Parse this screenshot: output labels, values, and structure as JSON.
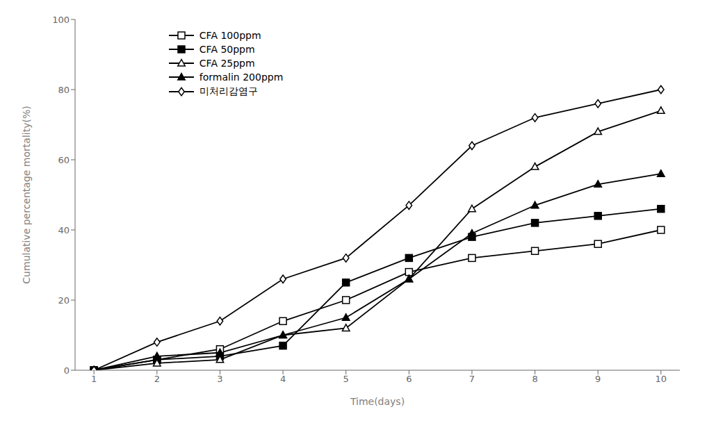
{
  "chart_data": {
    "type": "line",
    "x": [
      1,
      2,
      3,
      4,
      5,
      6,
      7,
      8,
      9,
      10
    ],
    "xlabel": "Time(days)",
    "ylabel": "Cumulative percentage mortality(%)",
    "xlim": [
      0.7,
      10.3
    ],
    "ylim": [
      0,
      100
    ],
    "xticks": [
      1,
      2,
      3,
      4,
      5,
      6,
      7,
      8,
      9,
      10
    ],
    "yticks": [
      0,
      20,
      40,
      60,
      80,
      100
    ],
    "grid": false,
    "legend": "upper left",
    "series": [
      {
        "name": "CFA 100ppm",
        "color": "#000000",
        "marker": "open-square",
        "values": [
          0,
          3,
          6,
          14,
          20,
          28,
          32,
          34,
          36,
          40
        ]
      },
      {
        "name": "CFA 50ppm",
        "color": "#000000",
        "marker": "square",
        "values": [
          0,
          3,
          4,
          7,
          25,
          32,
          38,
          42,
          44,
          46
        ]
      },
      {
        "name": "CFA 25ppm",
        "color": "#000000",
        "marker": "open-triangle",
        "values": [
          0,
          2,
          3,
          10,
          12,
          26,
          46,
          58,
          68,
          74
        ]
      },
      {
        "name": "formalin 200ppm",
        "color": "#000000",
        "marker": "triangle",
        "values": [
          0,
          4,
          5,
          10,
          15,
          26,
          39,
          47,
          53,
          56
        ]
      },
      {
        "name": "미처리감염구",
        "color": "#000000",
        "marker": "open-diamond",
        "values": [
          0,
          8,
          14,
          26,
          32,
          47,
          64,
          72,
          76,
          80
        ]
      }
    ]
  }
}
